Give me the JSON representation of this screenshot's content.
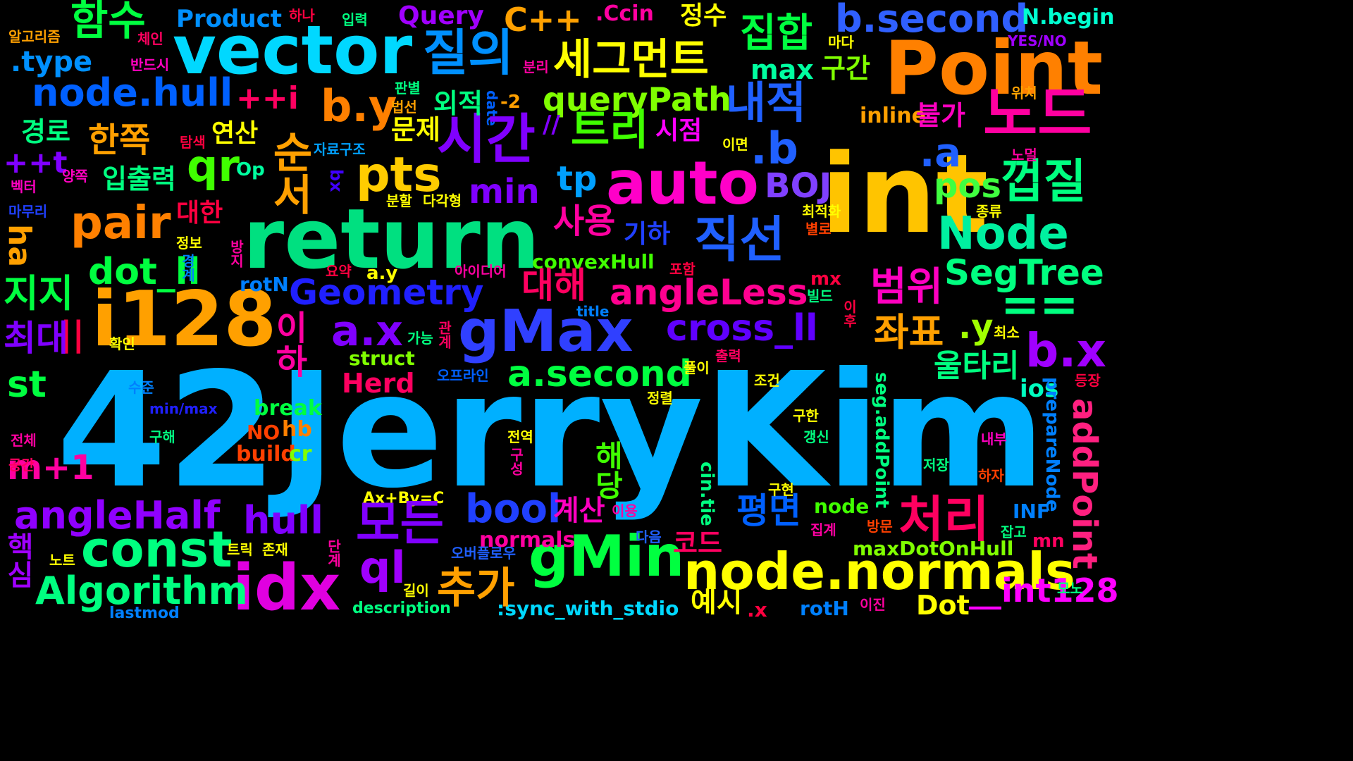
{
  "words": [
    {
      "text": "42JerryKim",
      "color": "#00b0ff"
    },
    {
      "text": "int",
      "color": "#ffc400"
    },
    {
      "text": "return",
      "color": "#00e080"
    },
    {
      "text": "Point",
      "color": "#ff8000"
    },
    {
      "text": "vector",
      "color": "#00d8ff"
    },
    {
      "text": "i128",
      "color": "#ffa000"
    },
    {
      "text": "auto",
      "color": "#ff00c8"
    },
    {
      "text": "node.normals",
      "color": "#ffff00"
    },
    {
      "text": "gMax",
      "color": "#3040ff"
    },
    {
      "text": "idx",
      "color": "#e000e0"
    },
    {
      "text": "gMin",
      "color": "#00ff40"
    },
    {
      "text": "const",
      "color": "#00ff80"
    },
    {
      "text": "pts",
      "color": "#ffcc00"
    },
    {
      "text": "pair",
      "color": "#ff8000"
    },
    {
      "text": "Node",
      "color": "#00f0a0"
    },
    {
      "text": "node.hull",
      "color": "#0060ff"
    },
    {
      "text": "b.second",
      "color": "#3060ff"
    },
    {
      "text": "a.second",
      "color": "#00ff40"
    },
    {
      "text": "cross_ll",
      "color": "#6000ff"
    },
    {
      "text": "angleLess",
      "color": "#ff0090"
    },
    {
      "text": "Geometry",
      "color": "#2020ff"
    },
    {
      "text": "Algorithm",
      "color": "#00ff80"
    },
    {
      "text": "angleHalf",
      "color": "#9000ff"
    },
    {
      "text": "SegTree",
      "color": "#00ff80"
    },
    {
      "text": "queryPath",
      "color": "#80ff00"
    },
    {
      "text": "addPoint",
      "color": "#ff2080"
    },
    {
      "text": "hull",
      "color": "#8000ff"
    },
    {
      "text": "bool",
      "color": "#2040ff"
    },
    {
      "text": "dot_ll",
      "color": "#00ff40"
    },
    {
      "text": "a.x",
      "color": "#8000ff"
    },
    {
      "text": "b.x",
      "color": "#a000ff"
    },
    {
      "text": "b.y",
      "color": "#ff8000"
    },
    {
      "text": ".b",
      "color": "#2060ff"
    },
    {
      "text": ".a",
      "color": "#2060ff"
    },
    {
      "text": "qr",
      "color": "#40ff00"
    },
    {
      "text": "ql",
      "color": "#a000ff"
    },
    {
      "text": "tp",
      "color": "#00a0ff"
    },
    {
      "text": "min",
      "color": "#8000ff"
    },
    {
      "text": "max",
      "color": "#00ffa0"
    },
    {
      "text": "pos",
      "color": "#40ff40"
    },
    {
      "text": "BOJ",
      "color": "#8040ff"
    },
    {
      "text": "C++",
      "color": "#ffa000"
    },
    {
      "text": "Query",
      "color": "#a000ff"
    },
    {
      "text": "Product",
      "color": "#0090ff"
    },
    {
      "text": ".type",
      "color": "#0090ff"
    },
    {
      "text": "++i",
      "color": "#ff0060"
    },
    {
      "text": "++t",
      "color": "#8000ff"
    },
    {
      "text": "m+1",
      "color": "#ff00a0"
    },
    {
      "text": "st",
      "color": "#00ff40"
    },
    {
      "text": "ha",
      "color": "#ffa000"
    },
    {
      "text": "==",
      "color": "#00ff80"
    },
    {
      "text": "||",
      "color": "#ff0040"
    },
    {
      "text": "//",
      "color": "#8000ff"
    },
    {
      "text": ".y",
      "color": "#a0ff00"
    },
    {
      "text": "Herd",
      "color": "#ff0060"
    },
    {
      "text": "ios",
      "color": "#00ffc0"
    },
    {
      "text": "struct",
      "color": "#80ff00"
    },
    {
      "text": "convexHull",
      "color": "#40ff00"
    },
    {
      "text": "__int128",
      "color": "#ff00ff"
    },
    {
      "text": "Dot",
      "color": "#ffff00"
    },
    {
      "text": "maxDotOnHull",
      "color": "#80ff00"
    },
    {
      "text": "N.begin",
      "color": "#00ffd0"
    },
    {
      "text": ".Ccin",
      "color": "#ff00a0"
    },
    {
      "text": "inline",
      "color": "#ffa000"
    },
    {
      "text": "break",
      "color": "#00ff40"
    },
    {
      "text": "build",
      "color": "#ff4000"
    },
    {
      "text": "rotN",
      "color": "#0080ff"
    },
    {
      "text": "rotH",
      "color": "#0080ff"
    },
    {
      "text": "cr",
      "color": "#80ff00"
    },
    {
      "text": "hb",
      "color": "#ff8000"
    },
    {
      "text": "NO",
      "color": "#ff4000"
    },
    {
      "text": "mx",
      "color": "#ff0040"
    },
    {
      "text": "mn",
      "color": "#ff0060"
    },
    {
      "text": "INF",
      "color": "#0080ff"
    },
    {
      "text": "node",
      "color": "#40ff00"
    },
    {
      "text": "normals",
      "color": "#ff00a0"
    },
    {
      "text": "a.y",
      "color": "#ffff00"
    },
    {
      "text": "Op",
      "color": "#00ffa0"
    },
    {
      "text": "bx",
      "color": "#4000ff"
    },
    {
      "text": "-2",
      "color": "#ffa000"
    },
    {
      "text": "date",
      "color": "#0060ff"
    },
    {
      "text": ".x",
      "color": "#ff0040"
    },
    {
      "text": "title",
      "color": "#0080ff"
    },
    {
      "text": "YES/NO",
      "color": "#a000ff"
    },
    {
      "text": "Ax+By=C",
      "color": "#ffff00"
    },
    {
      "text": "min/max",
      "color": "#2020ff"
    },
    {
      "text": "description",
      "color": "#00ff80"
    },
    {
      "text": "lastmod",
      "color": "#0080ff"
    },
    {
      "text": ":sync_with_stdio",
      "color": "#00d8ff"
    },
    {
      "text": "seg.addPoint",
      "color": "#00ff80"
    },
    {
      "text": "prepareNode",
      "color": "#0080ff"
    },
    {
      "text": "cin.tie",
      "color": "#00ff80"
    },
    {
      "text": "함수",
      "color": "#00ff40"
    },
    {
      "text": "질의",
      "color": "#0090ff"
    },
    {
      "text": "세그먼트",
      "color": "#ffff00"
    },
    {
      "text": "집합",
      "color": "#00ff40"
    },
    {
      "text": "노드",
      "color": "#ff00a0"
    },
    {
      "text": "내적",
      "color": "#2060ff"
    },
    {
      "text": "트리",
      "color": "#40ff00"
    },
    {
      "text": "시간",
      "color": "#8000ff"
    },
    {
      "text": "껍질",
      "color": "#00ff80"
    },
    {
      "text": "한쪽",
      "color": "#ffa000"
    },
    {
      "text": "직선",
      "color": "#2060ff"
    },
    {
      "text": "사용",
      "color": "#ff00a0"
    },
    {
      "text": "대해",
      "color": "#ff0060"
    },
    {
      "text": "범위",
      "color": "#ff00c0"
    },
    {
      "text": "좌표",
      "color": "#ffa000"
    },
    {
      "text": "울타리",
      "color": "#00ff80"
    },
    {
      "text": "모든",
      "color": "#8000ff"
    },
    {
      "text": "처리",
      "color": "#ff0060"
    },
    {
      "text": "추가",
      "color": "#ffa000"
    },
    {
      "text": "평면",
      "color": "#0060ff"
    },
    {
      "text": "지지",
      "color": "#00ff40"
    },
    {
      "text": "최대",
      "color": "#8000ff"
    },
    {
      "text": "순서",
      "color": "#ffa000"
    },
    {
      "text": "이하",
      "color": "#ff00a0"
    },
    {
      "text": "해당",
      "color": "#40ff00"
    },
    {
      "text": "핵심",
      "color": "#a000ff"
    },
    {
      "text": "코드",
      "color": "#ff0060"
    },
    {
      "text": "계산",
      "color": "#ff00c0"
    },
    {
      "text": "예시",
      "color": "#ffff00"
    },
    {
      "text": "경로",
      "color": "#00ff80"
    },
    {
      "text": "연산",
      "color": "#ffff00"
    },
    {
      "text": "대한",
      "color": "#ff0040"
    },
    {
      "text": "입출력",
      "color": "#00ff80"
    },
    {
      "text": "문제",
      "color": "#ffff00"
    },
    {
      "text": "외적",
      "color": "#00ff80"
    },
    {
      "text": "기하",
      "color": "#2040ff"
    },
    {
      "text": "시점",
      "color": "#ff00ff"
    },
    {
      "text": "불가",
      "color": "#ff00c0"
    },
    {
      "text": "정수",
      "color": "#ffff00"
    },
    {
      "text": "구간",
      "color": "#80ff00"
    },
    {
      "text": "구현",
      "color": "#ffff00"
    },
    {
      "text": "전체",
      "color": "#ff00a0"
    },
    {
      "text": "공간",
      "color": "#ff0060"
    },
    {
      "text": "알고리즘",
      "color": "#ffa000"
    },
    {
      "text": "체인",
      "color": "#ff0060"
    },
    {
      "text": "반드시",
      "color": "#ff00c0"
    },
    {
      "text": "하나",
      "color": "#ff0040"
    },
    {
      "text": "입력",
      "color": "#00ff80"
    },
    {
      "text": "마다",
      "color": "#ffff00"
    },
    {
      "text": "분리",
      "color": "#ff00a0"
    },
    {
      "text": "판별",
      "color": "#00ff80"
    },
    {
      "text": "법선",
      "color": "#ffa000"
    },
    {
      "text": "탐색",
      "color": "#ff0040"
    },
    {
      "text": "자료구조",
      "color": "#00a0ff"
    },
    {
      "text": "양쪽",
      "color": "#ff00c0"
    },
    {
      "text": "벡터",
      "color": "#ff00c0"
    },
    {
      "text": "마무리",
      "color": "#2040ff"
    },
    {
      "text": "분할",
      "color": "#ffff00"
    },
    {
      "text": "다각형",
      "color": "#ffff00"
    },
    {
      "text": "이면",
      "color": "#ffff00"
    },
    {
      "text": "위치",
      "color": "#ffa000"
    },
    {
      "text": "노멀",
      "color": "#ff00a0"
    },
    {
      "text": "종류",
      "color": "#ffff00"
    },
    {
      "text": "최적화",
      "color": "#ffff00"
    },
    {
      "text": "별로",
      "color": "#ff4000"
    },
    {
      "text": "정보",
      "color": "#ffff00"
    },
    {
      "text": "경계",
      "color": "#0080ff"
    },
    {
      "text": "방지",
      "color": "#ff00a0"
    },
    {
      "text": "요약",
      "color": "#ff0040"
    },
    {
      "text": "아이디어",
      "color": "#ff00a0"
    },
    {
      "text": "포함",
      "color": "#ff0040"
    },
    {
      "text": "빌드",
      "color": "#00ff80"
    },
    {
      "text": "확인",
      "color": "#ffff00"
    },
    {
      "text": "가능",
      "color": "#00ff80"
    },
    {
      "text": "관계",
      "color": "#ff0060"
    },
    {
      "text": "최소",
      "color": "#ffff00"
    },
    {
      "text": "이후",
      "color": "#ff0040"
    },
    {
      "text": "출력",
      "color": "#ff0060"
    },
    {
      "text": "풀이",
      "color": "#ffff00"
    },
    {
      "text": "조건",
      "color": "#ffff00"
    },
    {
      "text": "수준",
      "color": "#0080ff"
    },
    {
      "text": "오프라인",
      "color": "#0060ff"
    },
    {
      "text": "등장",
      "color": "#ff0040"
    },
    {
      "text": "정렬",
      "color": "#ffff00"
    },
    {
      "text": "구한",
      "color": "#ffff00"
    },
    {
      "text": "갱신",
      "color": "#00ff80"
    },
    {
      "text": "구해",
      "color": "#00ff80"
    },
    {
      "text": "전역",
      "color": "#ffff00"
    },
    {
      "text": "구성",
      "color": "#ff00a0"
    },
    {
      "text": "내부",
      "color": "#ff00c0"
    },
    {
      "text": "저장",
      "color": "#00ff80"
    },
    {
      "text": "하자",
      "color": "#ff4000"
    },
    {
      "text": "이용",
      "color": "#ff00a0"
    },
    {
      "text": "집계",
      "color": "#ff00a0"
    },
    {
      "text": "방문",
      "color": "#ff4000"
    },
    {
      "text": "잡고",
      "color": "#00ff80"
    },
    {
      "text": "다음",
      "color": "#2060ff"
    },
    {
      "text": "트릭",
      "color": "#ffff00"
    },
    {
      "text": "존재",
      "color": "#ffff00"
    },
    {
      "text": "노트",
      "color": "#ffff00"
    },
    {
      "text": "오버플로우",
      "color": "#2060ff"
    },
    {
      "text": "단계",
      "color": "#ff00a0"
    },
    {
      "text": "길이",
      "color": "#ffff00"
    },
    {
      "text": "이진",
      "color": "#ff00a0"
    },
    {
      "text": "모노",
      "color": "#00ff80"
    }
  ]
}
